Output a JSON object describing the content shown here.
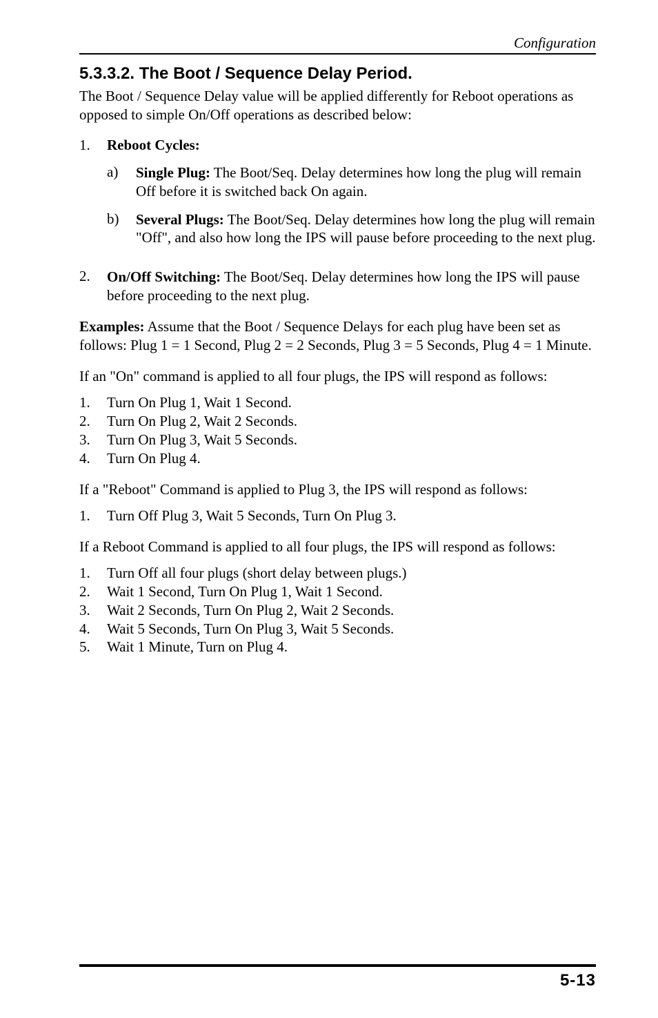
{
  "header": {
    "label": "Configuration"
  },
  "section": {
    "heading": "5.3.3.2.  The Boot / Sequence Delay Period.",
    "intro": "The Boot / Sequence Delay value will be applied differently for Reboot operations as opposed to simple On/Off operations as described below:"
  },
  "main_list": {
    "item1": {
      "num": "1.",
      "label": "Reboot Cycles:",
      "sub_a": {
        "num": "a)",
        "bold": "Single Plug:",
        "text": "  The Boot/Seq. Delay determines how long the plug will remain Off before it is switched back On again."
      },
      "sub_b": {
        "num": "b)",
        "bold": "Several Plugs:",
        "text": "  The Boot/Seq. Delay determines how long the plug will remain \"Off\", and also how long the IPS will pause before proceeding to the next plug."
      }
    },
    "item2": {
      "num": "2.",
      "bold": "On/Off Switching:",
      "text": "  The Boot/Seq. Delay determines how long the IPS will pause before proceeding to the next plug."
    }
  },
  "examples": {
    "label": "Examples:",
    "text": "  Assume that the Boot / Sequence Delays for each plug have been set as follows:  Plug 1 = 1 Second, Plug 2 = 2 Seconds, Plug 3 = 5 Seconds, Plug 4 = 1 Minute."
  },
  "on_cmd": {
    "intro": "If an \"On\" command is applied to all four plugs, the IPS will respond as follows:",
    "items": {
      "i1": {
        "num": "1.",
        "text": "Turn On Plug 1, Wait 1 Second."
      },
      "i2": {
        "num": "2.",
        "text": "Turn On Plug 2, Wait 2 Seconds."
      },
      "i3": {
        "num": "3.",
        "text": "Turn On Plug 3, Wait 5 Seconds."
      },
      "i4": {
        "num": "4.",
        "text": "Turn On Plug 4."
      }
    }
  },
  "reboot_one": {
    "intro": "If a \"Reboot\" Command is applied to Plug 3, the IPS will respond as follows:",
    "items": {
      "i1": {
        "num": "1.",
        "text": "Turn Off Plug 3, Wait 5 Seconds, Turn On Plug 3."
      }
    }
  },
  "reboot_all": {
    "intro": "If a Reboot Command is applied to all four plugs, the IPS will respond as follows:",
    "items": {
      "i1": {
        "num": "1.",
        "text": "Turn Off all four plugs (short delay between plugs.)"
      },
      "i2": {
        "num": "2.",
        "text": "Wait 1 Second, Turn On Plug 1, Wait 1 Second."
      },
      "i3": {
        "num": "3.",
        "text": "Wait 2 Seconds, Turn On Plug 2, Wait 2 Seconds."
      },
      "i4": {
        "num": "4.",
        "text": "Wait 5 Seconds, Turn On Plug 3, Wait 5 Seconds."
      },
      "i5": {
        "num": "5.",
        "text": "Wait 1 Minute, Turn on Plug 4."
      }
    }
  },
  "footer": {
    "page": "5-13"
  }
}
